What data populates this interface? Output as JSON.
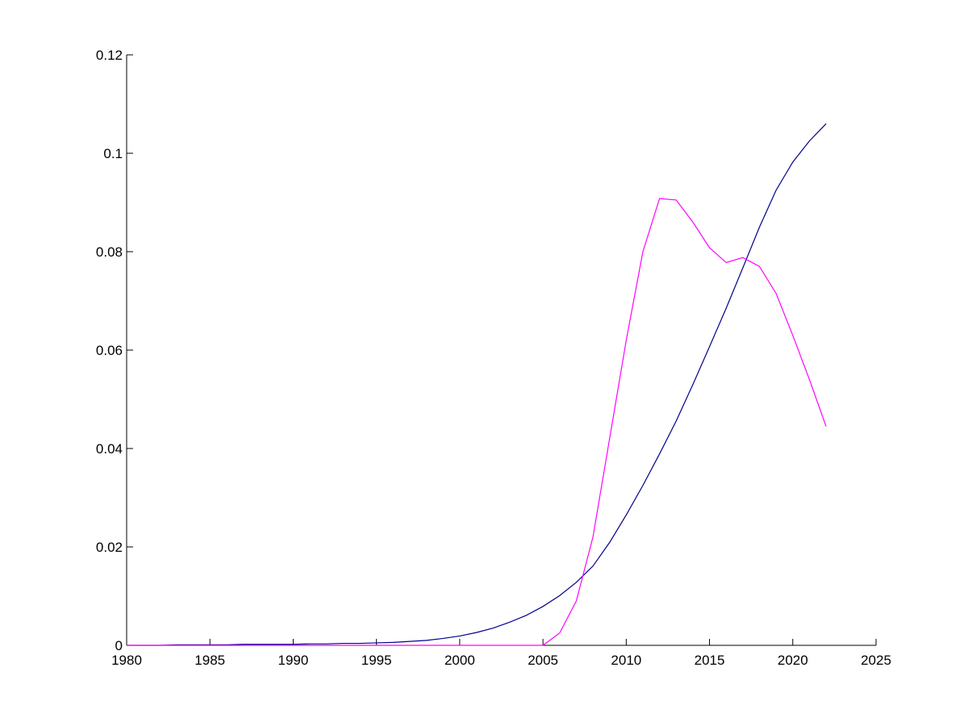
{
  "chart_data": {
    "type": "line",
    "x": [
      1980,
      1981,
      1982,
      1983,
      1984,
      1985,
      1986,
      1987,
      1988,
      1989,
      1990,
      1991,
      1992,
      1993,
      1994,
      1995,
      1996,
      1997,
      1998,
      1999,
      2000,
      2001,
      2002,
      2003,
      2004,
      2005,
      2006,
      2007,
      2008,
      2009,
      2010,
      2011,
      2012,
      2013,
      2014,
      2015,
      2016,
      2017,
      2018,
      2019,
      2020,
      2021,
      2022
    ],
    "series": [
      {
        "color": "#00008b",
        "values": [
          0,
          0,
          0,
          0.0001,
          0.0001,
          0.0001,
          0.0001,
          0.0002,
          0.0002,
          0.0002,
          0.0002,
          0.0003,
          0.0003,
          0.0004,
          0.0004,
          0.0005,
          0.0006,
          0.0008,
          0.001,
          0.0014,
          0.0019,
          0.0026,
          0.0035,
          0.0047,
          0.0061,
          0.0079,
          0.0101,
          0.0128,
          0.0161,
          0.0209,
          0.0265,
          0.0325,
          0.0389,
          0.0456,
          0.053,
          0.0607,
          0.0685,
          0.0767,
          0.085,
          0.0925,
          0.0982,
          0.1025,
          0.106
        ]
      },
      {
        "color": "#ff00ff",
        "values": [
          0,
          0,
          0,
          0,
          0,
          0,
          0,
          0,
          0,
          0,
          0,
          0,
          0,
          0,
          0,
          0,
          0,
          0,
          0,
          0,
          0,
          0,
          0,
          0,
          0,
          0,
          0.0025,
          0.009,
          0.022,
          0.042,
          0.062,
          0.08,
          0.0908,
          0.0905,
          0.086,
          0.0808,
          0.0778,
          0.0788,
          0.077,
          0.0715,
          0.063,
          0.054,
          0.0445
        ]
      }
    ],
    "xlim": [
      1980,
      2025
    ],
    "xticks": [
      1980,
      1985,
      1990,
      1995,
      2000,
      2005,
      2010,
      2015,
      2020,
      2025
    ],
    "ylim": [
      0,
      0.12
    ],
    "yticks": [
      0,
      0.02,
      0.04,
      0.06,
      0.08,
      0.1,
      0.12
    ],
    "grid": false
  }
}
